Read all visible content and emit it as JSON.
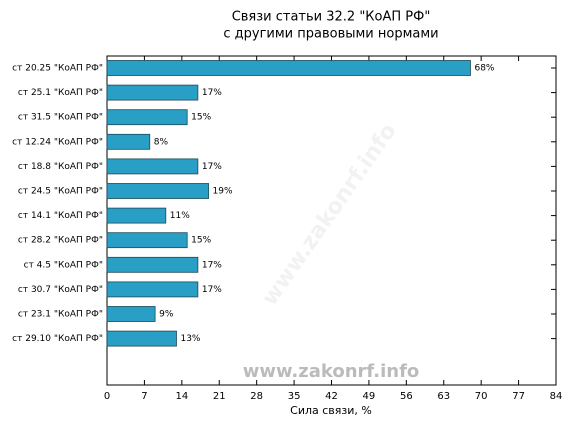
{
  "chart_data": {
    "type": "barh",
    "title": "Связи статьи 32.2 \"КоАП РФ\"",
    "subtitle": "с другими правовыми нормами",
    "xlabel": "Сила связи, %",
    "watermark": "www.zakonrf.info",
    "categories": [
      "ст 20.25 \"КоАП РФ\"",
      "ст 25.1 \"КоАП РФ\"",
      "ст 31.5 \"КоАП РФ\"",
      "ст 12.24 \"КоАП РФ\"",
      "ст 18.8 \"КоАП РФ\"",
      "ст 24.5 \"КоАП РФ\"",
      "ст 14.1 \"КоАП РФ\"",
      "ст 28.2 \"КоАП РФ\"",
      "ст 4.5 \"КоАП РФ\"",
      "ст 30.7 \"КоАП РФ\"",
      "ст 23.1 \"КоАП РФ\"",
      "ст 29.10 \"КоАП РФ\""
    ],
    "values": [
      68,
      17,
      15,
      8,
      17,
      19,
      11,
      15,
      17,
      17,
      9,
      13
    ],
    "value_labels": [
      "68%",
      "17%",
      "15%",
      "8%",
      "17%",
      "19%",
      "11%",
      "15%",
      "17%",
      "17%",
      "9%",
      "13%"
    ],
    "color": "#2a9fc5",
    "xlim": [
      0,
      84
    ],
    "xticks": [
      0,
      7,
      14,
      21,
      28,
      35,
      42,
      49,
      56,
      63,
      70,
      77,
      84
    ]
  }
}
